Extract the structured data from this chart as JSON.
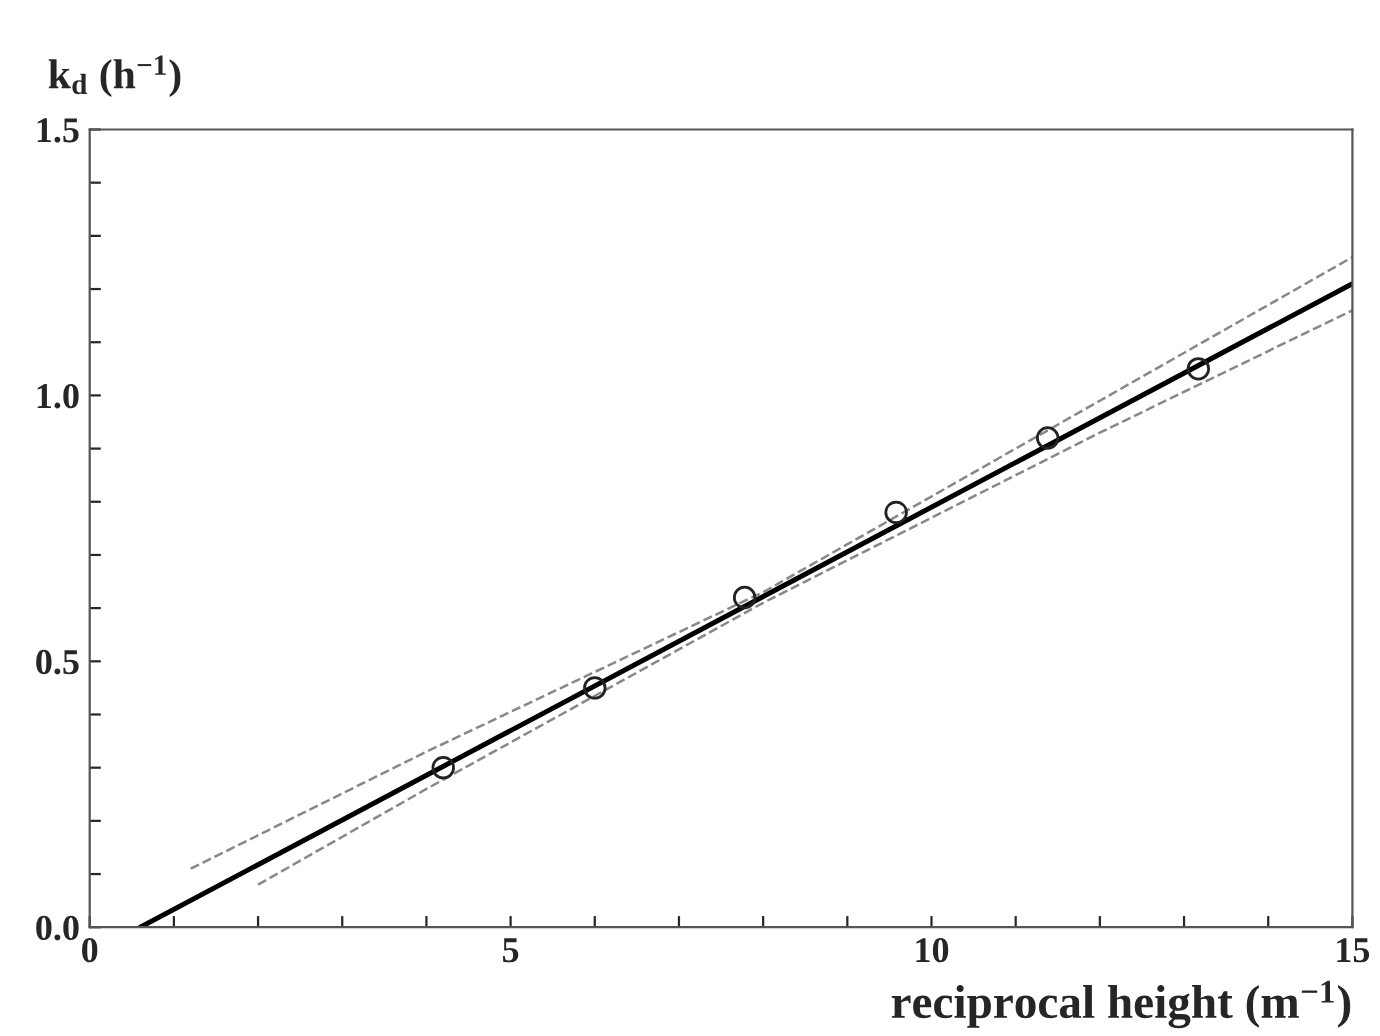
{
  "chart_data": {
    "type": "scatter",
    "xlabel": "reciprocal height (m$^{−1}$)",
    "ylabel": "k$_{d}$ (h$^{−1}$)",
    "xlim": [
      0,
      15
    ],
    "ylim": [
      0,
      1.5
    ],
    "xticks": [
      0,
      {
        "value": 1,
        "label": null
      },
      {
        "value": 2,
        "label": null
      },
      {
        "value": 3,
        "label": null
      },
      {
        "value": 4,
        "label": null
      },
      5,
      {
        "value": 6,
        "label": null
      },
      {
        "value": 7,
        "label": null
      },
      {
        "value": 8,
        "label": null
      },
      {
        "value": 9,
        "label": null
      },
      10,
      {
        "value": 11,
        "label": null
      },
      {
        "value": 12,
        "label": null
      },
      {
        "value": 13,
        "label": null
      },
      {
        "value": 14,
        "label": null
      },
      15
    ],
    "yticks": [
      {
        "value": 0,
        "label": "0.0"
      },
      {
        "value": 0.1,
        "label": null
      },
      {
        "value": 0.2,
        "label": null
      },
      {
        "value": 0.3,
        "label": null
      },
      {
        "value": 0.4,
        "label": null
      },
      0.5,
      {
        "value": 0.6,
        "label": null
      },
      {
        "value": 0.7,
        "label": null
      },
      {
        "value": 0.8,
        "label": null
      },
      {
        "value": 0.9,
        "label": null
      },
      {
        "value": 1,
        "label": "1.0"
      },
      {
        "value": 1.1,
        "label": null
      },
      {
        "value": 1.2,
        "label": null
      },
      {
        "value": 1.3,
        "label": null
      },
      {
        "value": 1.4,
        "label": null
      },
      1.5
    ],
    "grid": false,
    "series": [
      {
        "color": "#222222",
        "marker": "circle",
        "x": [
          4.2,
          6.0,
          7.78,
          9.58,
          11.38,
          13.17
        ],
        "values": [
          0.3,
          0.45,
          0.62,
          0.78,
          0.92,
          1.05
        ]
      },
      {
        "type": "line",
        "color": "#000000",
        "line_style": "solid",
        "x": [
          0.6,
          15
        ],
        "values": [
          0,
          1.21
        ]
      },
      {
        "type": "line",
        "color": "#888888",
        "line_style": "dashed",
        "x": [
          1.2,
          4,
          8,
          12,
          15
        ],
        "values": [
          0.11,
          0.33,
          0.63,
          0.99,
          1.26
        ]
      },
      {
        "type": "line",
        "color": "#888888",
        "line_style": "dashed",
        "x": [
          2,
          4,
          8,
          12,
          15
        ],
        "values": [
          0.08,
          0.26,
          0.61,
          0.93,
          1.16
        ]
      }
    ]
  }
}
